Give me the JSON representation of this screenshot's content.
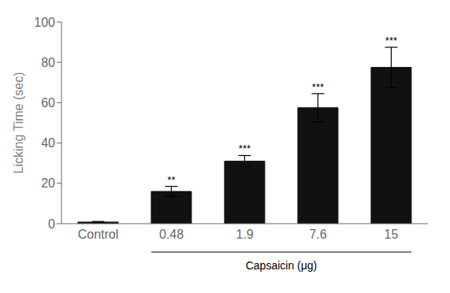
{
  "chart_data": {
    "type": "bar",
    "categories": [
      "Control",
      "0.48",
      "1.9",
      "7.6",
      "15"
    ],
    "values": [
      0.8,
      16.0,
      31.0,
      57.5,
      77.5
    ],
    "errors": [
      0.3,
      2.5,
      2.8,
      7.0,
      10.0
    ],
    "significance": [
      null,
      "**",
      "***",
      "***",
      "***"
    ],
    "color": "#111111",
    "ylabel": "Licking Time (sec)",
    "ylim": [
      0,
      100
    ],
    "yticks": [
      0,
      20,
      40,
      60,
      80,
      100
    ],
    "grid": false,
    "annotations": [
      {
        "text": "Capsaicin (μg)",
        "from": "0.48",
        "to": "15"
      }
    ]
  }
}
